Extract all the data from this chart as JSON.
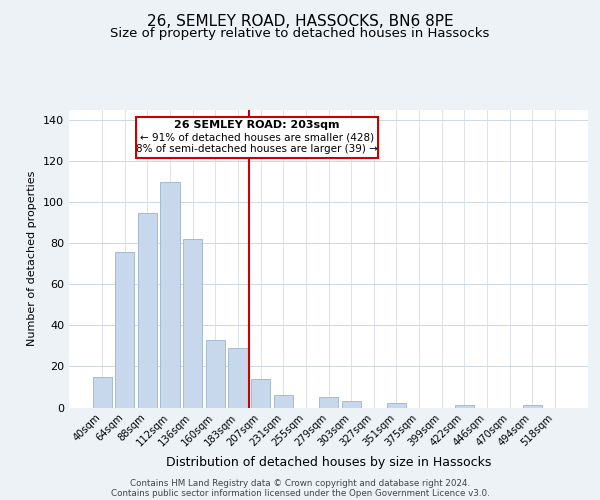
{
  "title": "26, SEMLEY ROAD, HASSOCKS, BN6 8PE",
  "subtitle": "Size of property relative to detached houses in Hassocks",
  "xlabel": "Distribution of detached houses by size in Hassocks",
  "ylabel": "Number of detached properties",
  "bar_color": "#c8d8ec",
  "bar_edge_color": "#9ab4cc",
  "categories": [
    "40sqm",
    "64sqm",
    "88sqm",
    "112sqm",
    "136sqm",
    "160sqm",
    "183sqm",
    "207sqm",
    "231sqm",
    "255sqm",
    "279sqm",
    "303sqm",
    "327sqm",
    "351sqm",
    "375sqm",
    "399sqm",
    "422sqm",
    "446sqm",
    "470sqm",
    "494sqm",
    "518sqm"
  ],
  "values": [
    15,
    76,
    95,
    110,
    82,
    33,
    29,
    14,
    6,
    0,
    5,
    3,
    0,
    2,
    0,
    0,
    1,
    0,
    0,
    1,
    0
  ],
  "ylim": [
    0,
    145
  ],
  "yticks": [
    0,
    20,
    40,
    60,
    80,
    100,
    120,
    140
  ],
  "vline_idx": 7,
  "annotation_title": "26 SEMLEY ROAD: 203sqm",
  "annotation_line1": "← 91% of detached houses are smaller (428)",
  "annotation_line2": "8% of semi-detached houses are larger (39) →",
  "footer1": "Contains HM Land Registry data © Crown copyright and database right 2024.",
  "footer2": "Contains public sector information licensed under the Open Government Licence v3.0.",
  "background_color": "#edf2f7",
  "plot_background": "#ffffff",
  "title_fontsize": 11,
  "subtitle_fontsize": 9.5,
  "annotation_box_color": "#ffffff",
  "annotation_box_edge": "#cc0000",
  "vline_color": "#cc0000",
  "grid_color": "#d0d8e0"
}
